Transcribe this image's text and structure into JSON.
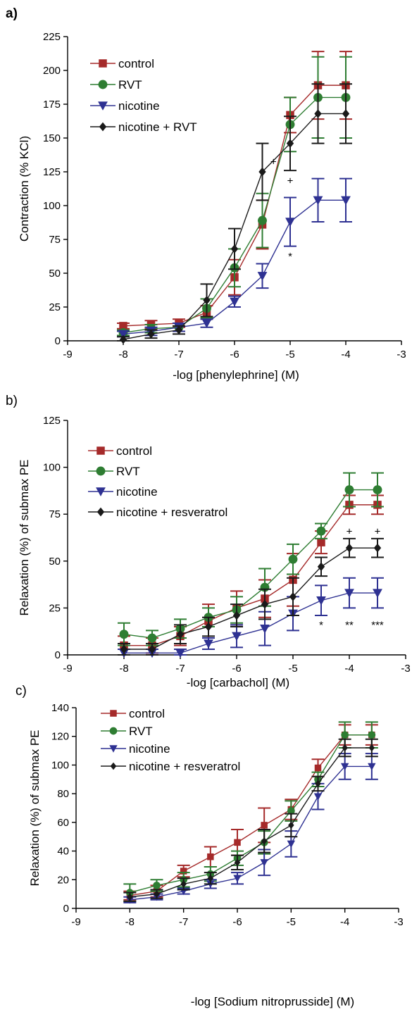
{
  "colors": {
    "control": "#a52a2a",
    "rvt": "#2e7d32",
    "nicotine": "#2e3192",
    "nicotine_rvt": "#1a1a1a"
  },
  "chart_data": [
    {
      "id": "a",
      "panel_label": "a)",
      "type": "line",
      "xlabel": "-log [phenylephrine] (M)",
      "ylabel": "Contraction (% KCl)",
      "xlim": [
        -9,
        -3
      ],
      "ylim": [
        0,
        225
      ],
      "xticks": [
        -9,
        -8,
        -7,
        -6,
        -5,
        -4,
        -3
      ],
      "xtick_labels": [
        "-9",
        "-8",
        "-7",
        "-6",
        "-5",
        "-4",
        "-3"
      ],
      "yticks": [
        0,
        25,
        50,
        75,
        100,
        125,
        150,
        175,
        200,
        225
      ],
      "ytick_labels": [
        "0",
        "25",
        "50",
        "75",
        "100",
        "125",
        "150",
        "175",
        "200",
        "225"
      ],
      "legend_position": "top-left",
      "series": [
        {
          "name": "control",
          "color": "#a52a2a",
          "marker": "square",
          "x": [
            -8,
            -7.5,
            -7,
            -6.5,
            -6,
            -5.5,
            -5,
            -4.5,
            -4
          ],
          "y": [
            11,
            12,
            13,
            21,
            47,
            86,
            167,
            189,
            189
          ],
          "err": [
            2,
            3,
            3,
            5,
            13,
            18,
            13,
            25,
            25
          ]
        },
        {
          "name": "RVT",
          "color": "#2e7d32",
          "marker": "circle",
          "x": [
            -8,
            -7.5,
            -7,
            -6.5,
            -6,
            -5.5,
            -5,
            -4.5,
            -4
          ],
          "y": [
            6,
            9,
            10,
            24,
            54,
            89,
            160,
            180,
            180
          ],
          "err": [
            2,
            3,
            3,
            7,
            14,
            20,
            20,
            30,
            30
          ]
        },
        {
          "name": "nicotine",
          "color": "#2e3192",
          "marker": "triangle-down",
          "x": [
            -8,
            -7.5,
            -7,
            -6.5,
            -6,
            -5.5,
            -5,
            -4.5,
            -4
          ],
          "y": [
            5,
            7,
            10,
            13,
            29,
            48,
            88,
            104,
            104
          ],
          "err": [
            2,
            3,
            3,
            3,
            4,
            9,
            18,
            16,
            16
          ]
        },
        {
          "name": "nicotine + RVT",
          "color": "#1a1a1a",
          "marker": "diamond",
          "x": [
            -8,
            -7.5,
            -7,
            -6.5,
            -6,
            -5.5,
            -5,
            -4.5,
            -4
          ],
          "y": [
            1,
            5,
            8,
            30,
            68,
            125,
            146,
            168,
            168
          ],
          "err": [
            2,
            3,
            3,
            12,
            15,
            21,
            20,
            22,
            22
          ]
        }
      ],
      "annotations": [
        {
          "text": "+",
          "x": -5.3,
          "y": 130
        },
        {
          "text": "+",
          "x": -5,
          "y": 116
        },
        {
          "text": "*",
          "x": -5,
          "y": 60
        }
      ]
    },
    {
      "id": "b",
      "panel_label": "b)",
      "type": "line",
      "xlabel": "-log [carbachol] (M)",
      "ylabel": "Relaxation (%) of submax PE",
      "xlim": [
        -9,
        -3
      ],
      "ylim": [
        0,
        125
      ],
      "xticks": [
        -9,
        -8,
        -7,
        -6,
        -5,
        -4,
        -3
      ],
      "xtick_labels": [
        "-9",
        "-8",
        "-7",
        "-6",
        "-5",
        "-4",
        "-3"
      ],
      "yticks": [
        0,
        25,
        50,
        75,
        100,
        125
      ],
      "ytick_labels": [
        "0",
        "25",
        "50",
        "75",
        "100",
        "125"
      ],
      "legend_position": "top-left",
      "series": [
        {
          "name": "control",
          "color": "#a52a2a",
          "marker": "square",
          "x": [
            -8,
            -7.5,
            -7,
            -6.5,
            -6,
            -5.5,
            -5,
            -4.5,
            -4,
            -3.5
          ],
          "y": [
            5,
            5,
            10,
            18,
            25,
            30,
            40,
            60,
            80,
            80
          ],
          "err": [
            5,
            4,
            5,
            9,
            9,
            10,
            14,
            6,
            5,
            5
          ]
        },
        {
          "name": "RVT",
          "color": "#2e7d32",
          "marker": "circle",
          "x": [
            -8,
            -7.5,
            -7,
            -6.5,
            -6,
            -5.5,
            -5,
            -4.5,
            -4,
            -3.5
          ],
          "y": [
            11,
            9,
            14,
            20,
            24,
            36,
            51,
            66,
            88,
            88
          ],
          "err": [
            6,
            4,
            5,
            5,
            7,
            10,
            8,
            4,
            9,
            9
          ]
        },
        {
          "name": "nicotine",
          "color": "#2e3192",
          "marker": "triangle-down",
          "x": [
            -8,
            -7.5,
            -7,
            -6.5,
            -6,
            -5.5,
            -5,
            -4.5,
            -4,
            -3.5
          ],
          "y": [
            1,
            1,
            1,
            6,
            10,
            14,
            22,
            29,
            33,
            33
          ],
          "err": [
            2,
            2,
            2,
            3,
            6,
            9,
            9,
            8,
            8,
            8
          ]
        },
        {
          "name": "nicotine + resveratrol",
          "color": "#1a1a1a",
          "marker": "diamond",
          "x": [
            -8,
            -7.5,
            -7,
            -6.5,
            -6,
            -5.5,
            -5,
            -4.5,
            -4,
            -3.5
          ],
          "y": [
            3,
            3,
            11,
            15,
            21,
            27,
            31,
            47,
            57,
            57
          ],
          "err": [
            3,
            3,
            5,
            5,
            6,
            8,
            10,
            5,
            5,
            5
          ]
        }
      ],
      "annotations": [
        {
          "text": "*",
          "x": -4.5,
          "y": 14
        },
        {
          "text": "**",
          "x": -4,
          "y": 14
        },
        {
          "text": "***",
          "x": -3.5,
          "y": 14
        },
        {
          "text": "+",
          "x": -4,
          "y": 64
        },
        {
          "text": "+",
          "x": -3.5,
          "y": 64
        }
      ]
    },
    {
      "id": "c",
      "panel_label": "c)",
      "type": "line",
      "xlabel": "-log [Sodium nitroprusside] (M)",
      "ylabel": "Relaxation (%) of submax PE",
      "xlim": [
        -9,
        -3
      ],
      "ylim": [
        0,
        140
      ],
      "xticks": [
        -9,
        -8,
        -7,
        -6,
        -5,
        -4,
        -3
      ],
      "xtick_labels": [
        "-9",
        "-8",
        "-7",
        "-6",
        "-5",
        "-4",
        "-3"
      ],
      "yticks": [
        0,
        20,
        40,
        60,
        80,
        100,
        120,
        140
      ],
      "ytick_labels": [
        "0",
        "20",
        "40",
        "60",
        "80",
        "100",
        "120",
        "140"
      ],
      "legend_position": "top-left",
      "series": [
        {
          "name": "control",
          "color": "#a52a2a",
          "marker": "square",
          "x": [
            -8,
            -7.5,
            -7,
            -6.5,
            -6,
            -5.5,
            -5,
            -4.5,
            -4,
            -3.5
          ],
          "y": [
            9,
            12,
            26,
            36,
            46,
            58,
            69,
            98,
            121,
            121
          ],
          "err": [
            3,
            4,
            4,
            7,
            9,
            12,
            7,
            6,
            7,
            7
          ]
        },
        {
          "name": "RVT",
          "color": "#2e7d32",
          "marker": "circle",
          "x": [
            -8,
            -7.5,
            -7,
            -6.5,
            -6,
            -5.5,
            -5,
            -4.5,
            -4,
            -3.5
          ],
          "y": [
            11,
            16,
            20,
            24,
            35,
            46,
            68,
            90,
            121,
            121
          ],
          "err": [
            6,
            4,
            5,
            5,
            5,
            8,
            7,
            5,
            9,
            9
          ]
        },
        {
          "name": "nicotine",
          "color": "#2e3192",
          "marker": "triangle-down",
          "x": [
            -8,
            -7.5,
            -7,
            -6.5,
            -6,
            -5.5,
            -5,
            -4.5,
            -4,
            -3.5
          ],
          "y": [
            6,
            8,
            12,
            17,
            21,
            32,
            45,
            78,
            99,
            99
          ],
          "err": [
            2,
            2,
            2,
            3,
            4,
            9,
            9,
            9,
            9,
            9
          ]
        },
        {
          "name": "nicotine + resveratrol",
          "color": "#1a1a1a",
          "marker": "diamond",
          "x": [
            -8,
            -7.5,
            -7,
            -6.5,
            -6,
            -5.5,
            -5,
            -4.5,
            -4,
            -3.5
          ],
          "y": [
            8,
            10,
            17,
            21,
            32,
            47,
            58,
            87,
            112,
            112
          ],
          "err": [
            3,
            3,
            4,
            4,
            5,
            8,
            8,
            5,
            6,
            6
          ]
        }
      ],
      "annotations": []
    }
  ]
}
